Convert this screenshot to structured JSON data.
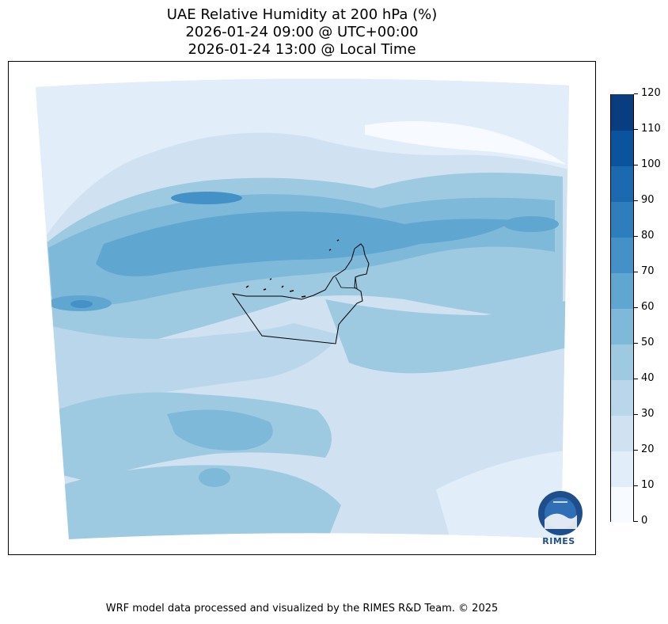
{
  "title": {
    "line1": "UAE Relative Humidity at 200 hPa (%)",
    "line2": "2026-01-24 09:00 @ UTC+00:00",
    "line3": "2026-01-24 13:00 @ Local Time"
  },
  "colorbar": {
    "levels": [
      0,
      10,
      20,
      30,
      40,
      50,
      60,
      70,
      80,
      90,
      100,
      110,
      120
    ],
    "labels": [
      "0",
      "10",
      "20",
      "30",
      "40",
      "50",
      "60",
      "70",
      "80",
      "90",
      "100",
      "110",
      "120"
    ],
    "colors": [
      "#f7fbff",
      "#e1edf8",
      "#d0e1f2",
      "#b9d6ea",
      "#9ecae1",
      "#7fb9da",
      "#5fa6d1",
      "#4391c6",
      "#2e7ebc",
      "#1b69af",
      "#0a549e",
      "#083e7f"
    ]
  },
  "logo": {
    "text": "RIMES"
  },
  "footer": "WRF model data processed and visualized by the RIMES R&D Team. © 2025"
}
